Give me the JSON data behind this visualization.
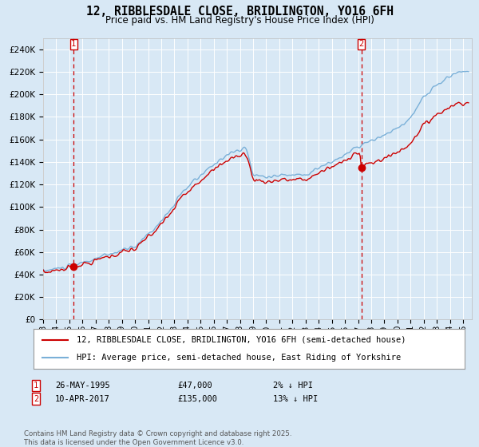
{
  "title": "12, RIBBLESDALE CLOSE, BRIDLINGTON, YO16 6FH",
  "subtitle": "Price paid vs. HM Land Registry's House Price Index (HPI)",
  "bg_color": "#d8e8f5",
  "plot_bg_color": "#d8e8f5",
  "hpi_color": "#7ab0d8",
  "prop_color": "#cc0000",
  "purchase1_year": 1995,
  "purchase1_month": 5,
  "purchase1_price": 47000,
  "purchase2_year": 2017,
  "purchase2_month": 4,
  "purchase2_price": 135000,
  "legend_line1": "12, RIBBLESDALE CLOSE, BRIDLINGTON, YO16 6FH (semi-detached house)",
  "legend_line2": "HPI: Average price, semi-detached house, East Riding of Yorkshire",
  "footer": "Contains HM Land Registry data © Crown copyright and database right 2025.\nThis data is licensed under the Open Government Licence v3.0.",
  "ylim": [
    0,
    250000
  ],
  "ann1_date": "26-MAY-1995",
  "ann1_price": "£47,000",
  "ann1_hpi": "2% ↓ HPI",
  "ann2_date": "10-APR-2017",
  "ann2_price": "£135,000",
  "ann2_hpi": "13% ↓ HPI"
}
